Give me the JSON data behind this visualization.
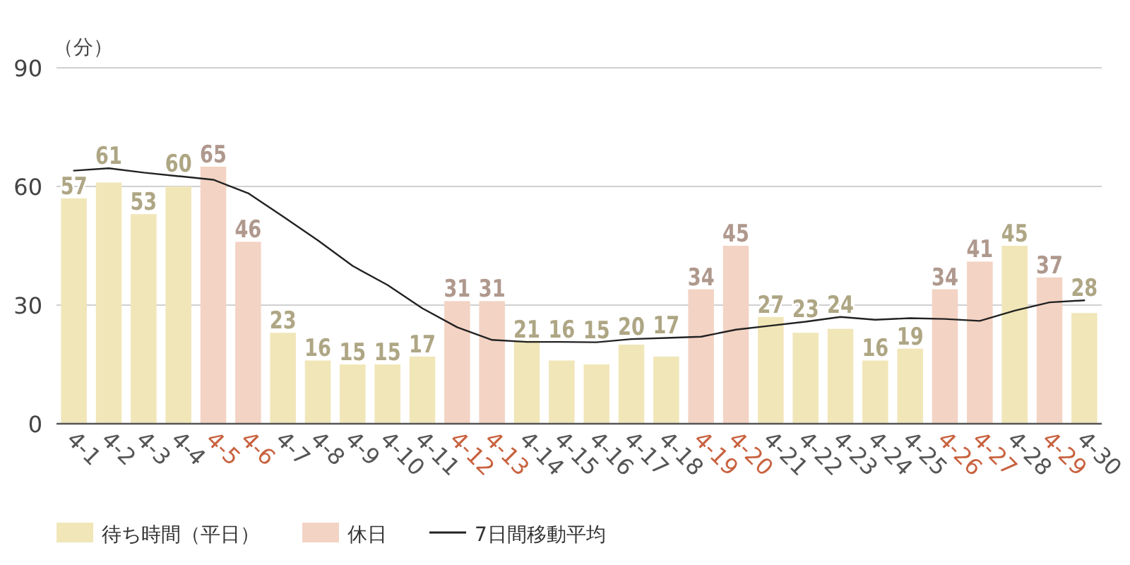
{
  "chart_data": {
    "type": "bar",
    "ylabel": "（分）",
    "categories": [
      "4-1",
      "4-2",
      "4-3",
      "4-4",
      "4-5",
      "4-6",
      "4-7",
      "4-8",
      "4-9",
      "4-10",
      "4-11",
      "4-12",
      "4-13",
      "4-14",
      "4-15",
      "4-16",
      "4-17",
      "4-18",
      "4-19",
      "4-20",
      "4-21",
      "4-22",
      "4-23",
      "4-24",
      "4-25",
      "4-26",
      "4-27",
      "4-28",
      "4-29",
      "4-30"
    ],
    "series": [
      {
        "name": "待ち時間（平日）",
        "color": "#f1e6b8",
        "values": [
          57,
          61,
          53,
          60,
          null,
          null,
          23,
          16,
          15,
          15,
          17,
          null,
          null,
          21,
          16,
          15,
          20,
          17,
          null,
          null,
          27,
          23,
          24,
          16,
          19,
          null,
          null,
          45,
          null,
          28
        ],
        "value_labels": [
          "57",
          "61",
          "53",
          "60",
          null,
          null,
          "23",
          "16",
          "15",
          "15",
          "17",
          null,
          null,
          "21",
          "16",
          "15",
          "20",
          "17",
          null,
          null,
          "27",
          "23",
          "24",
          "16",
          "19",
          null,
          null,
          "45",
          null,
          "28"
        ]
      },
      {
        "name": "休日",
        "color": "#f3d3c4",
        "values": [
          null,
          null,
          null,
          null,
          65,
          46,
          null,
          null,
          null,
          null,
          null,
          31,
          31,
          null,
          null,
          null,
          null,
          null,
          34,
          45,
          null,
          null,
          null,
          null,
          null,
          34,
          41,
          null,
          37,
          null
        ],
        "value_labels": [
          null,
          null,
          null,
          null,
          "65",
          "46",
          null,
          null,
          null,
          null,
          null,
          "31",
          "31",
          null,
          null,
          null,
          null,
          null,
          "34",
          "45",
          null,
          null,
          null,
          null,
          null,
          "34",
          "41",
          null,
          "37",
          null
        ]
      },
      {
        "name": "7日間移動平均",
        "type": "line",
        "color": "#222222",
        "values": [
          64.0,
          64.6,
          63.5,
          62.6,
          61.7,
          58.3,
          52.4,
          46.4,
          39.9,
          35.1,
          29.2,
          24.4,
          21.2,
          20.7,
          20.7,
          20.6,
          21.4,
          21.7,
          22.0,
          23.8,
          24.8,
          25.8,
          27.0,
          26.3,
          26.7,
          26.5,
          26.0,
          28.6,
          30.7,
          31.2
        ]
      }
    ],
    "ylim": [
      0,
      90
    ],
    "yticks": [
      0,
      30,
      60,
      90
    ],
    "grid": "y",
    "legend": "bottom left",
    "marker": "none",
    "line_style": "solid"
  }
}
